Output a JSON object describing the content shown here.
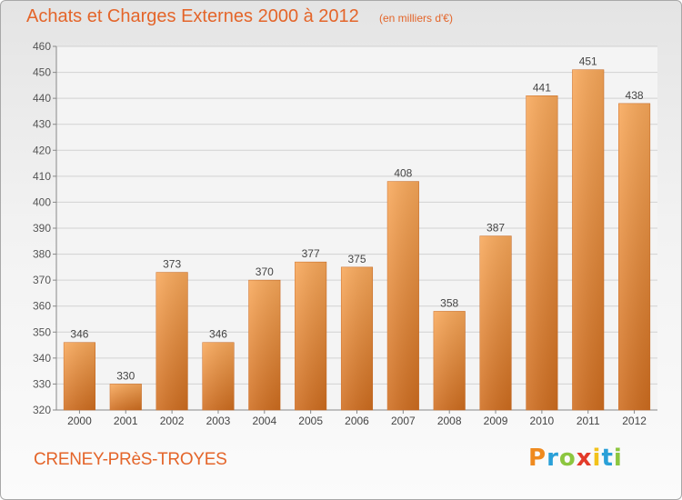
{
  "header": {
    "title": "Achats et Charges Externes 2000 à 2012",
    "subtitle": "(en milliers d'€)"
  },
  "footer": {
    "place": "CRENEY-PRèS-TROYES",
    "logo": "Proxiti"
  },
  "colors": {
    "accent": "#e4652a",
    "bar_light": "#f8a85a",
    "bar_dark": "#cf6d1f"
  },
  "chart_data": {
    "type": "bar",
    "categories": [
      "2000",
      "2001",
      "2002",
      "2003",
      "2004",
      "2005",
      "2006",
      "2007",
      "2008",
      "2009",
      "2010",
      "2011",
      "2012"
    ],
    "values": [
      346,
      330,
      373,
      346,
      370,
      377,
      375,
      408,
      358,
      387,
      441,
      451,
      438
    ],
    "ylim": [
      320,
      460
    ],
    "yticks": [
      320,
      330,
      340,
      350,
      360,
      370,
      380,
      390,
      400,
      410,
      420,
      430,
      440,
      450,
      460
    ],
    "grid": "horizontal",
    "data_labels": true
  }
}
